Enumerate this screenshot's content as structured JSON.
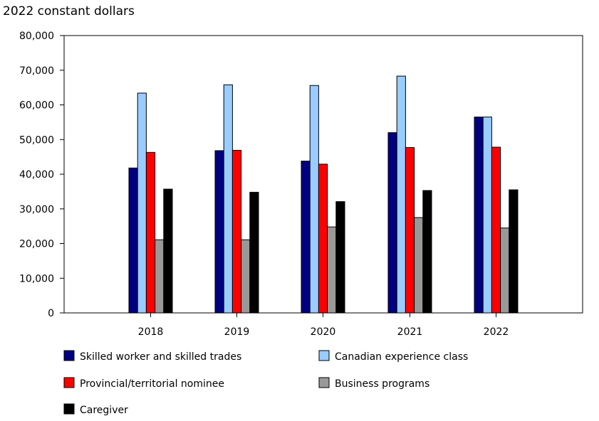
{
  "chart_data": {
    "type": "bar",
    "title": "2022 constant dollars",
    "xlabel": "",
    "ylabel": "2022 constant dollars",
    "ylim": [
      0,
      80000
    ],
    "yticks": [
      0,
      10000,
      20000,
      30000,
      40000,
      50000,
      60000,
      70000,
      80000
    ],
    "ytick_labels": [
      "0",
      "10,000",
      "20,000",
      "30,000",
      "40,000",
      "50,000",
      "60,000",
      "70,000",
      "80,000"
    ],
    "categories": [
      "2018",
      "2019",
      "2020",
      "2021",
      "2022"
    ],
    "grid": false,
    "legend_position": "bottom",
    "series": [
      {
        "name": "Skilled worker and skilled trades",
        "color": "#000080",
        "values": [
          41800,
          46800,
          43800,
          52000,
          56500
        ]
      },
      {
        "name": "Canadian experience class",
        "color": "#99ccff",
        "values": [
          63400,
          65800,
          65600,
          68300,
          56500
        ]
      },
      {
        "name": "Provincial/territorial nominee",
        "color": "#ff0000",
        "values": [
          46300,
          46900,
          42900,
          47700,
          47800
        ]
      },
      {
        "name": "Business programs",
        "color": "#999999",
        "values": [
          21100,
          21100,
          24800,
          27500,
          24500
        ]
      },
      {
        "name": "Caregiver",
        "color": "#000000",
        "values": [
          35700,
          34800,
          32100,
          35300,
          35500
        ]
      }
    ]
  }
}
